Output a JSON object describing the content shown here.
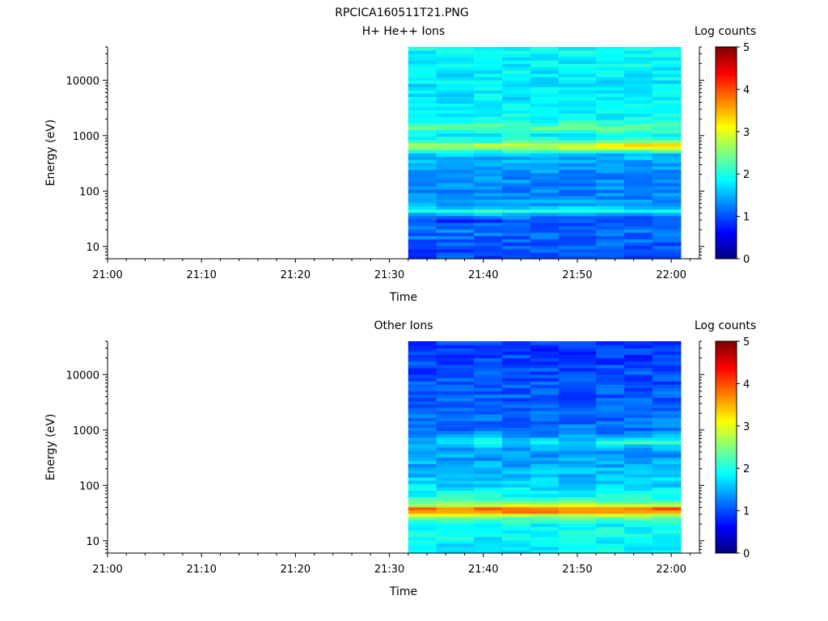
{
  "figure_title": "RPCICA160511T21.PNG",
  "chart_data": [
    {
      "type": "heatmap",
      "title": "H+ He++ Ions",
      "xlabel": "Time",
      "ylabel": "Energy (eV)",
      "colorbar_label": "Log counts",
      "colorbar_ticks": [
        "0",
        "1",
        "2",
        "3",
        "4",
        "5"
      ],
      "colorbar_range": [
        0,
        5
      ],
      "x_ticks": [
        "21:00",
        "21:10",
        "21:20",
        "21:30",
        "21:40",
        "21:50",
        "22:00"
      ],
      "y_ticks": [
        "10",
        "100",
        "1000",
        "10000"
      ],
      "y_scale": "log",
      "ylim": [
        6,
        40000
      ],
      "xlim": [
        "21:00",
        "22:03"
      ],
      "data_start": "21:32",
      "data_end": "22:01",
      "time_bins": [
        "21:32",
        "21:35",
        "21:39",
        "21:42",
        "21:45",
        "21:48",
        "21:52",
        "21:55",
        "21:58"
      ],
      "energy_profile": [
        [
          8,
          1.0
        ],
        [
          12,
          1.1
        ],
        [
          20,
          1.2
        ],
        [
          30,
          0.9
        ],
        [
          40,
          1.6
        ],
        [
          45,
          2.1
        ],
        [
          55,
          1.4
        ],
        [
          80,
          1.3
        ],
        [
          150,
          1.3
        ],
        [
          300,
          1.4
        ],
        [
          500,
          1.6
        ],
        [
          650,
          2.6
        ],
        [
          800,
          2.0
        ],
        [
          1000,
          1.8
        ],
        [
          1400,
          2.3
        ],
        [
          2000,
          1.9
        ],
        [
          5000,
          1.8
        ],
        [
          12000,
          1.8
        ],
        [
          30000,
          1.9
        ]
      ],
      "features": [
        {
          "e": 650,
          "width": 0.07,
          "amp": [
            0.2,
            0.2,
            0.4,
            0.4,
            0.4,
            0.5,
            0.7,
            0.8,
            0.8
          ]
        }
      ]
    },
    {
      "type": "heatmap",
      "title": "Other Ions",
      "xlabel": "Time",
      "ylabel": "Energy (eV)",
      "colorbar_label": "Log counts",
      "colorbar_ticks": [
        "0",
        "1",
        "2",
        "3",
        "4",
        "5"
      ],
      "colorbar_range": [
        0,
        5
      ],
      "x_ticks": [
        "21:00",
        "21:10",
        "21:20",
        "21:30",
        "21:40",
        "21:50",
        "22:00"
      ],
      "y_ticks": [
        "10",
        "100",
        "1000",
        "10000"
      ],
      "y_scale": "log",
      "ylim": [
        6,
        40000
      ],
      "xlim": [
        "21:00",
        "22:03"
      ],
      "data_start": "21:32",
      "data_end": "22:01",
      "time_bins": [
        "21:32",
        "21:35",
        "21:39",
        "21:42",
        "21:45",
        "21:48",
        "21:52",
        "21:55",
        "21:58"
      ],
      "energy_profile": [
        [
          8,
          1.8
        ],
        [
          12,
          1.9
        ],
        [
          20,
          1.9
        ],
        [
          27,
          2.3
        ],
        [
          33,
          3.6
        ],
        [
          38,
          3.9
        ],
        [
          45,
          2.7
        ],
        [
          60,
          2.0
        ],
        [
          100,
          1.7
        ],
        [
          200,
          1.5
        ],
        [
          400,
          1.4
        ],
        [
          600,
          1.5
        ],
        [
          1000,
          1.2
        ],
        [
          3000,
          1.1
        ],
        [
          10000,
          1.0
        ],
        [
          30000,
          0.9
        ]
      ],
      "features": [
        {
          "e": 620,
          "width": 0.06,
          "amp": [
            0.0,
            0.1,
            0.5,
            0.3,
            0.2,
            0.3,
            0.5,
            0.6,
            0.6
          ]
        }
      ]
    }
  ]
}
